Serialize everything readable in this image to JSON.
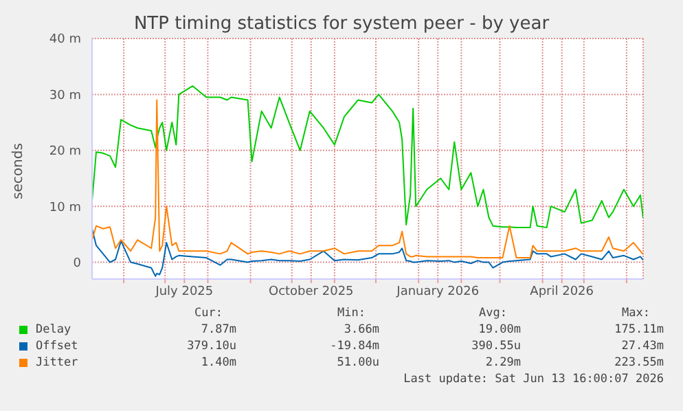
{
  "chart_data": {
    "type": "line",
    "title": "NTP timing statistics for system peer - by year",
    "ylabel": "seconds",
    "x": [
      "2025-05-09",
      "2025-05-12",
      "2025-05-17",
      "2025-05-22",
      "2025-05-26",
      "2025-05-30",
      "2025-06-06",
      "2025-06-11",
      "2025-06-21",
      "2025-06-24",
      "2025-06-25",
      "2025-06-27",
      "2025-06-29",
      "2025-07-02",
      "2025-07-06",
      "2025-07-09",
      "2025-07-11",
      "2025-07-21",
      "2025-07-31",
      "2025-08-10",
      "2025-08-15",
      "2025-08-18",
      "2025-08-30",
      "2025-09-02",
      "2025-09-09",
      "2025-09-16",
      "2025-09-22",
      "2025-09-29",
      "2025-10-07",
      "2025-10-14",
      "2025-10-24",
      "2025-11-01",
      "2025-11-08",
      "2025-11-18",
      "2025-11-28",
      "2025-12-03",
      "2025-12-13",
      "2025-12-18",
      "2025-12-20",
      "2025-12-23",
      "2025-12-26",
      "2025-12-28",
      "2025-12-30",
      "2026-01-07",
      "2026-01-17",
      "2026-01-23",
      "2026-01-27",
      "2026-02-01",
      "2026-02-08",
      "2026-02-13",
      "2026-02-17",
      "2026-02-21",
      "2026-02-24",
      "2026-03-03",
      "2026-03-08",
      "2026-03-13",
      "2026-03-23",
      "2026-03-25",
      "2026-03-28",
      "2026-04-04",
      "2026-04-07",
      "2026-04-17",
      "2026-04-25",
      "2026-04-29",
      "2026-05-07",
      "2026-05-14",
      "2026-05-19",
      "2026-05-22",
      "2026-05-30",
      "2026-06-06",
      "2026-06-11",
      "2026-06-13"
    ],
    "series": [
      {
        "name": "Delay",
        "color": "#00cc00",
        "values": [
          11,
          19.7,
          19.5,
          19,
          17,
          25.5,
          24.5,
          24,
          23.5,
          20.5,
          22,
          24,
          25,
          20,
          25,
          21,
          30,
          31.5,
          29.5,
          29.5,
          29,
          29.5,
          29,
          18,
          27,
          24,
          29.5,
          25,
          20,
          27,
          24,
          21,
          26,
          29,
          28.5,
          30,
          27,
          25,
          22,
          6.7,
          12,
          27.5,
          10,
          13,
          15,
          13,
          21.5,
          13,
          16,
          10,
          13,
          8,
          6.5,
          6.3,
          6.3,
          6.2,
          6.2,
          10,
          6.5,
          6.2,
          10,
          9,
          13,
          7,
          7.5,
          11,
          8,
          9,
          13,
          10,
          12,
          7.9
        ]
      },
      {
        "name": "Offset",
        "color": "#0066b3",
        "values": [
          6,
          3,
          1.5,
          0,
          0.5,
          3.8,
          0,
          -0.3,
          -1,
          -2.5,
          -2,
          -2.2,
          -1,
          3.5,
          0.5,
          1,
          1.2,
          1,
          0.8,
          -0.5,
          0.5,
          0.5,
          0,
          0.2,
          0.3,
          0.5,
          0.3,
          0.3,
          0.2,
          0.5,
          2,
          0.3,
          0.5,
          0.4,
          0.8,
          1.5,
          1.5,
          1.8,
          2.5,
          0.3,
          0.2,
          0,
          0,
          0.3,
          0.2,
          0.3,
          0,
          0.2,
          -0.2,
          0.3,
          0,
          0,
          -1,
          0,
          0.2,
          0.3,
          0.5,
          2,
          1.5,
          1.5,
          1,
          1.5,
          0.5,
          1.5,
          1,
          0.5,
          2,
          0.8,
          1.2,
          0.5,
          1,
          0.4
        ]
      },
      {
        "name": "Jitter",
        "color": "#ff8000",
        "values": [
          4,
          6.5,
          6,
          6.3,
          2.5,
          4,
          2,
          4,
          2.5,
          8,
          29,
          2,
          3,
          10,
          3,
          3.5,
          2,
          2,
          2,
          1.5,
          2,
          3.5,
          1.5,
          1.8,
          2,
          1.8,
          1.5,
          2,
          1.5,
          2,
          2,
          2.5,
          1.5,
          2,
          2,
          3,
          3,
          3.5,
          5.5,
          1.5,
          1,
          1,
          1.2,
          1,
          1,
          1,
          1,
          1,
          1,
          0.8,
          0.8,
          0.8,
          0.8,
          0.8,
          6.5,
          0.8,
          0.8,
          3,
          2,
          2,
          2,
          2,
          2.5,
          2,
          2,
          2,
          4.5,
          2.5,
          2,
          3.5,
          2,
          1.4
        ]
      }
    ],
    "xlim": [
      "2025-05-09",
      "2026-06-13"
    ],
    "xticks": [
      {
        "value": "2025-06-01",
        "label": null
      },
      {
        "value": "2025-07-01",
        "label": null
      },
      {
        "value": "2025-07-15",
        "label": "July 2025"
      },
      {
        "value": "2025-08-01",
        "label": null
      },
      {
        "value": "2025-09-01",
        "label": null
      },
      {
        "value": "2025-10-01",
        "label": null
      },
      {
        "value": "2025-10-15",
        "label": "October 2025"
      },
      {
        "value": "2025-11-01",
        "label": null
      },
      {
        "value": "2025-12-01",
        "label": null
      },
      {
        "value": "2026-01-01",
        "label": null
      },
      {
        "value": "2026-01-15",
        "label": "January 2026"
      },
      {
        "value": "2026-02-01",
        "label": null
      },
      {
        "value": "2026-03-01",
        "label": null
      },
      {
        "value": "2026-04-01",
        "label": null
      },
      {
        "value": "2026-04-15",
        "label": "April 2026"
      },
      {
        "value": "2026-05-01",
        "label": null
      },
      {
        "value": "2026-06-01",
        "label": null
      }
    ],
    "ylim": [
      -3,
      40
    ],
    "yticks": [
      0,
      {
        "value": 10,
        "label": "10 m"
      },
      {
        "value": 20,
        "label": "20 m"
      },
      {
        "value": 30,
        "label": "30 m"
      },
      {
        "value": 40,
        "label": "40 m"
      }
    ],
    "grid": true,
    "legend": "bottom",
    "marker": "none",
    "line_style": "solid",
    "annotations": [
      "Cur:",
      "Min:",
      "Avg:",
      "Max:",
      "7.87m",
      "3.66m",
      "19.00m",
      "175.11m",
      "379.10u",
      "-19.84m",
      "390.55u",
      "27.43m",
      "1.40m",
      "51.00u",
      "2.29m",
      "223.55m",
      "Last update: Sat Jun 13 16:00:07 2026"
    ]
  }
}
